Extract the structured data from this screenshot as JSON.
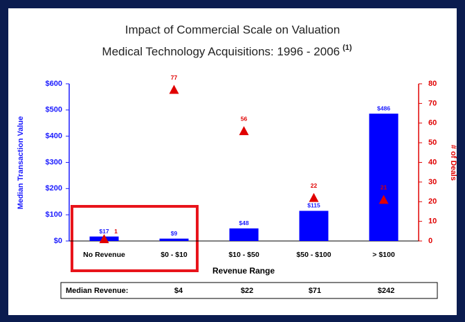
{
  "chart_data": {
    "type": "bar",
    "title": "Impact of Commercial Scale on Valuation",
    "subtitle": "Medical Technology Acquisitions: 1996 - 2006",
    "subtitle_note": "(1)",
    "xlabel": "Revenue Range",
    "ylabel": "Median Transaction Value",
    "y2label": "# of Deals",
    "categories": [
      "No Revenue",
      "$0 - $10",
      "$10 - $50",
      "$50 - $100",
      "> $100"
    ],
    "series": [
      {
        "name": "Median Transaction Value",
        "type": "bar",
        "color": "#0000ff",
        "values": [
          17,
          9,
          48,
          115,
          486
        ],
        "value_labels": [
          "$17",
          "$9",
          "$48",
          "$115",
          "$486"
        ]
      },
      {
        "name": "# of Deals",
        "type": "marker",
        "axis": "y2",
        "color": "#e00000",
        "values": [
          1,
          77,
          56,
          22,
          21
        ]
      }
    ],
    "ylim": [
      0,
      600
    ],
    "yticks": [
      {
        "value": 0,
        "label": "$0"
      },
      {
        "value": 100,
        "label": "$100"
      },
      {
        "value": 200,
        "label": "$200"
      },
      {
        "value": 300,
        "label": "$300"
      },
      {
        "value": 400,
        "label": "$400"
      },
      {
        "value": 500,
        "label": "$500"
      },
      {
        "value": 600,
        "label": "$600"
      }
    ],
    "y2lim": [
      0,
      80
    ],
    "y2ticks": [
      0,
      10,
      20,
      30,
      40,
      50,
      60,
      70,
      80
    ],
    "table": {
      "label": "Median Revenue:",
      "values": [
        "$4",
        "$22",
        "$71",
        "$242"
      ]
    }
  }
}
